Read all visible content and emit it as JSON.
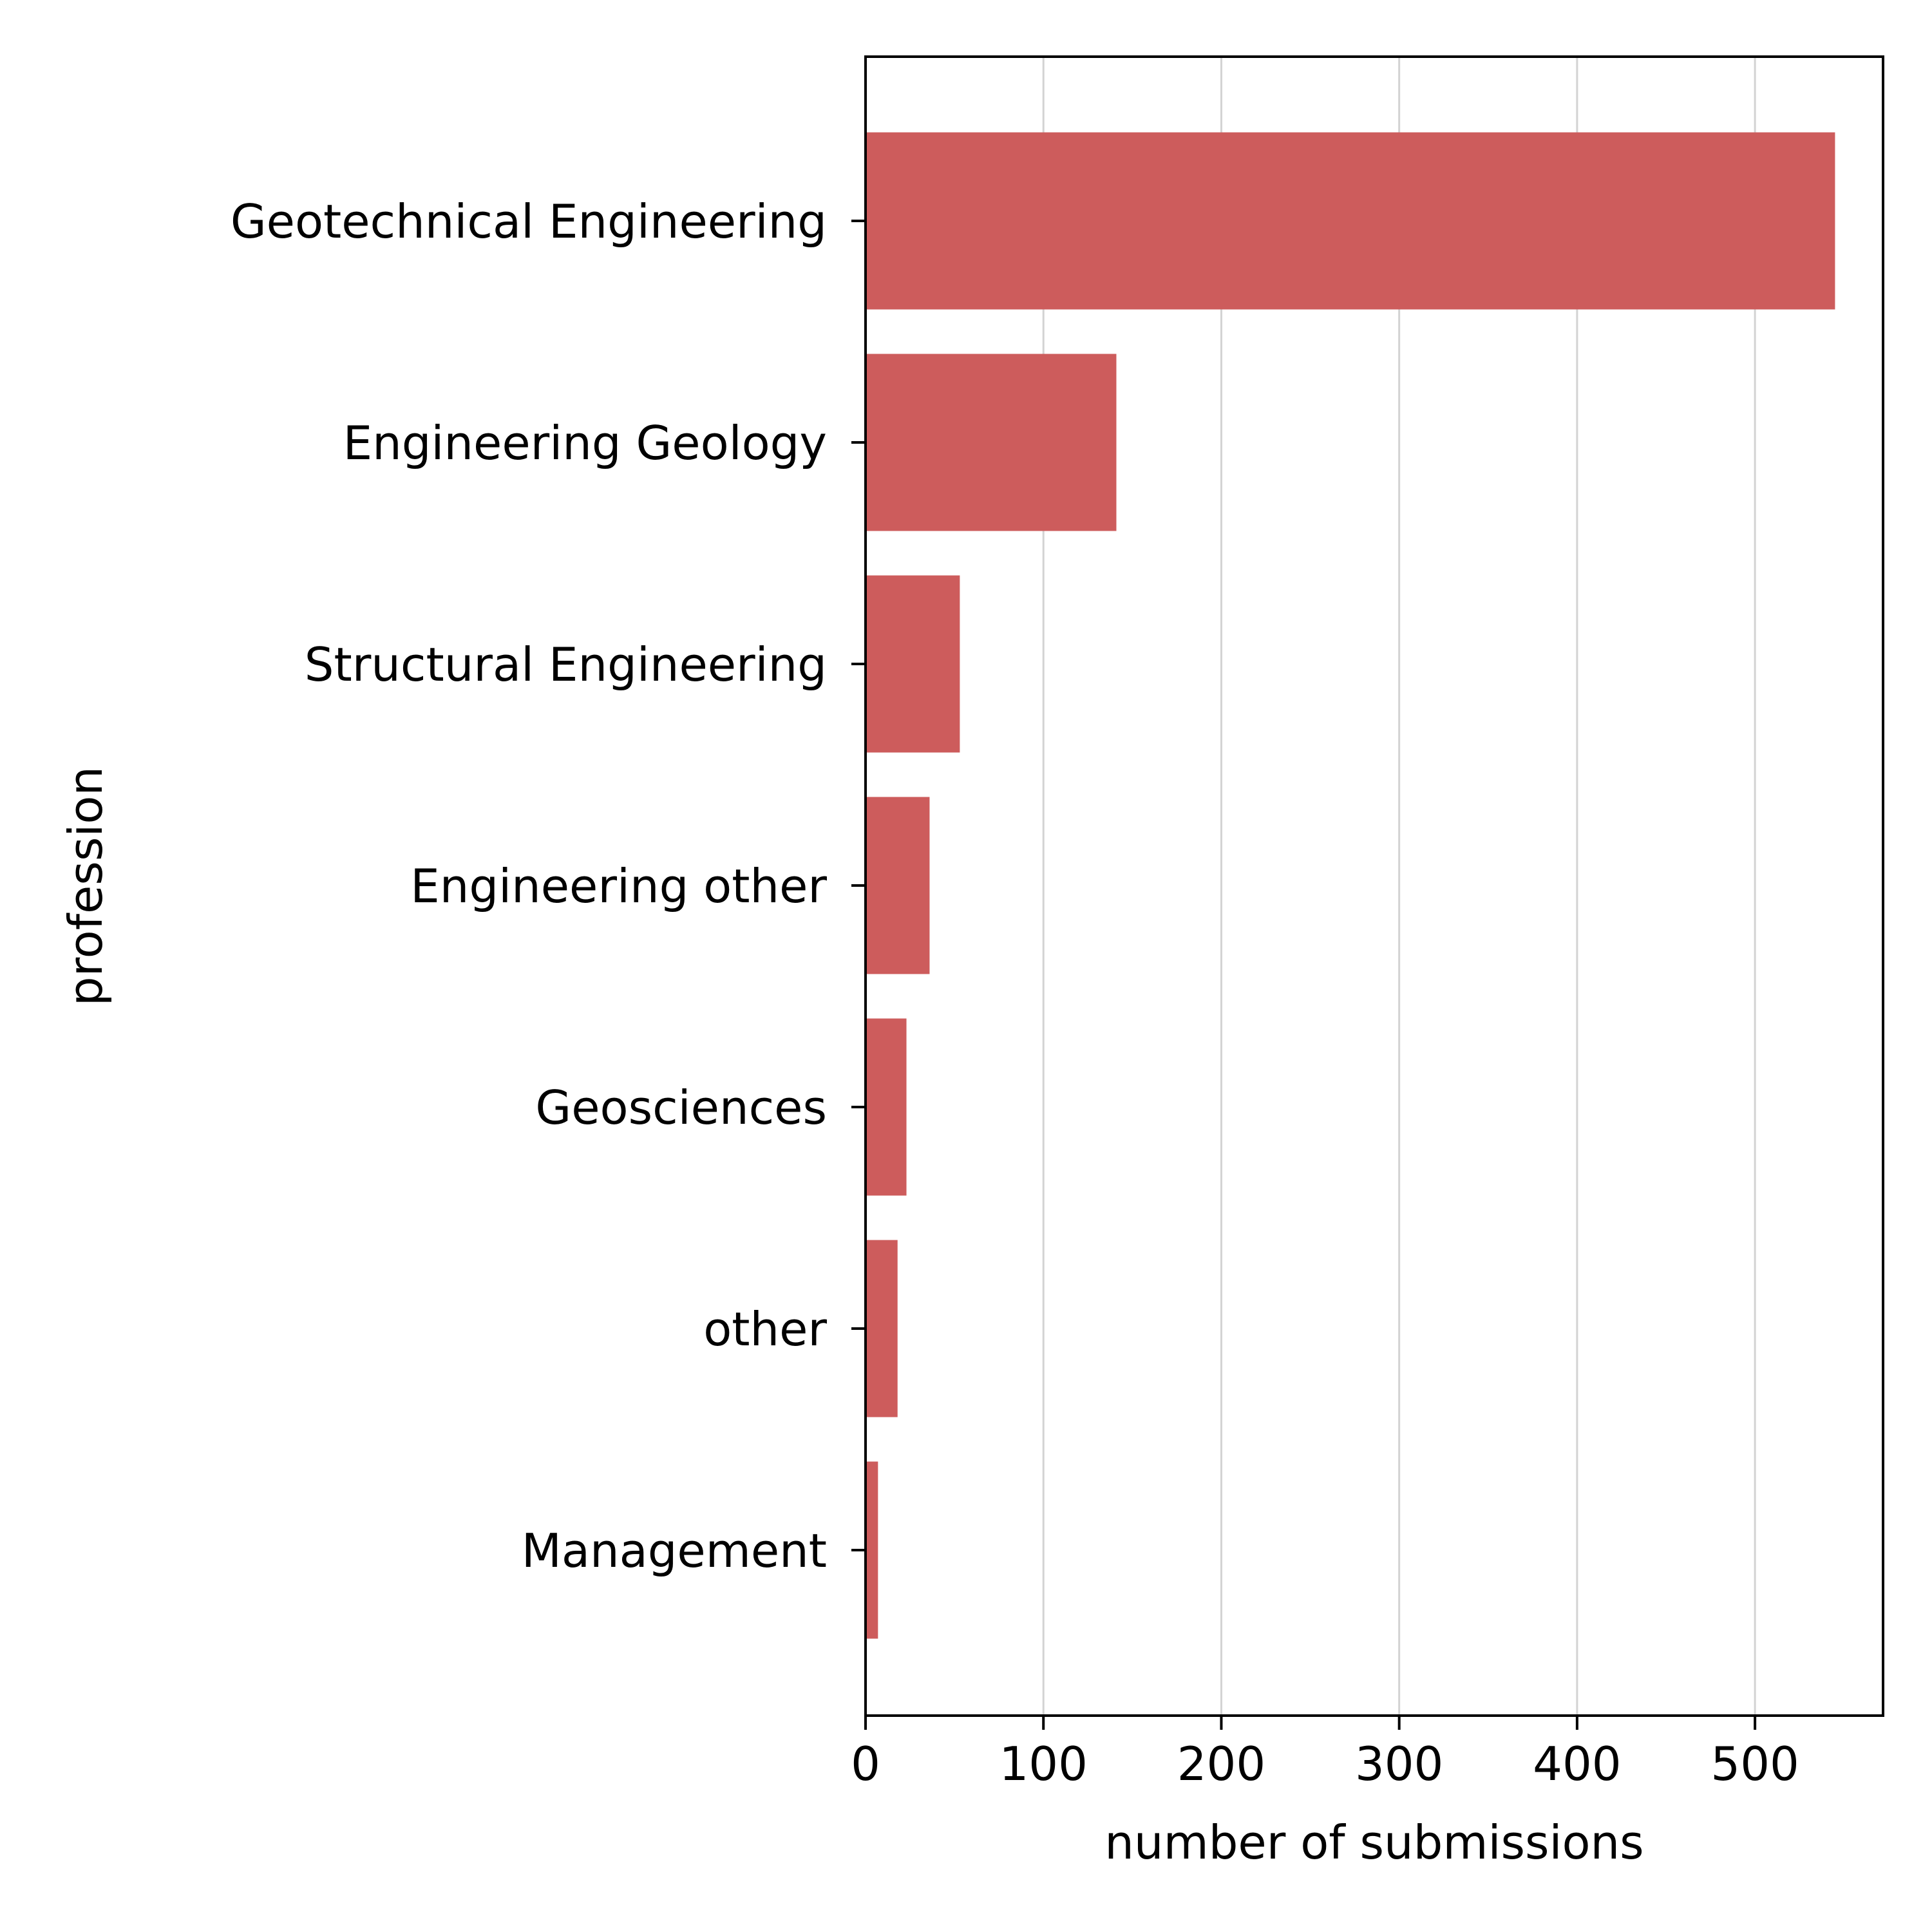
{
  "chart_data": {
    "type": "bar",
    "orientation": "horizontal",
    "categories": [
      "Geotechnical Engineering",
      "Engineering Geology",
      "Structural Engineering",
      "Engineering other",
      "Geosciences",
      "other",
      "Management"
    ],
    "values": [
      545,
      141,
      53,
      36,
      23,
      18,
      7
    ],
    "xlabel": "number of submissions",
    "ylabel": "profession",
    "xlim": [
      0,
      572
    ],
    "xticks": [
      0,
      100,
      200,
      300,
      400,
      500
    ],
    "grid": "vertical",
    "bar_color": "#cd5c5c",
    "grid_color": "#d3d3d3"
  }
}
